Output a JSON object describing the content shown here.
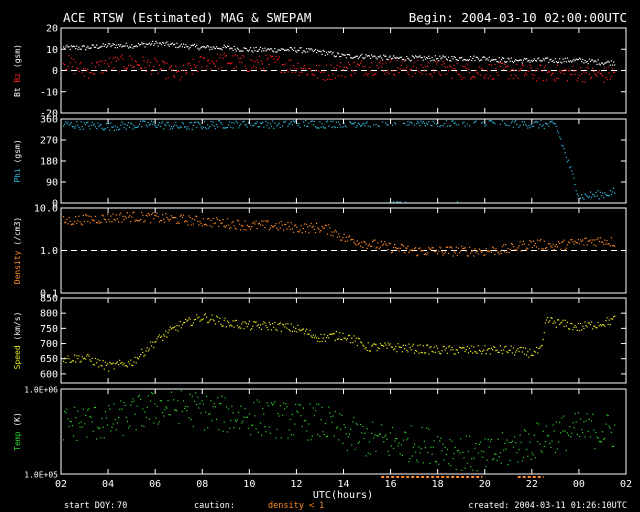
{
  "header": {
    "title": "ACE RTSW (Estimated) MAG & SWEPAM",
    "begin": "Begin: 2004-03-10 02:00:00UTC"
  },
  "footer": {
    "start_doy_label": "start DOY:",
    "start_doy": "70",
    "caution_label": "caution:",
    "density_note": "density < 1",
    "created": "created: 2004-03-11 01:26:10UTC"
  },
  "colors": {
    "bt": "#ffffff",
    "bz": "#ff2020",
    "phi": "#30b8e0",
    "density": "#ff8c28",
    "speed": "#e8e820",
    "temp": "#30d030",
    "axis": "#ffffff"
  },
  "chart_data": {
    "type": "scatter",
    "x_axis": {
      "label": "UTC(hours)",
      "range_hours": [
        2,
        26
      ],
      "tick_labels": [
        "02",
        "04",
        "06",
        "08",
        "10",
        "12",
        "14",
        "16",
        "18",
        "20",
        "22",
        "00",
        "02"
      ]
    },
    "caution_intervals_hours": [
      [
        15.6,
        19.9
      ],
      [
        21.4,
        22.5
      ]
    ],
    "panels": [
      {
        "id": "mag",
        "ylabel_parts": [
          "Bt",
          "Bz",
          "(gsm)"
        ],
        "ylim": [
          -20,
          20
        ],
        "scale": "linear",
        "tick_labels": [
          "20",
          "10",
          "0",
          "-10",
          "-20"
        ],
        "tick_values": [
          20,
          10,
          0,
          -10,
          -20
        ],
        "ref_line": 0,
        "series": [
          {
            "name": "Bt",
            "color_key": "bt",
            "x": [
              2,
              3,
              4,
              5,
              6,
              7,
              8,
              9,
              10,
              11,
              12,
              13,
              14,
              15,
              16,
              17,
              18,
              19,
              20,
              21,
              22,
              23,
              24,
              25,
              25.5
            ],
            "y": [
              11,
              11,
              12,
              12,
              13,
              12,
              11,
              11,
              10,
              10,
              10,
              9,
              7,
              7,
              6,
              6,
              6,
              6,
              6,
              5,
              5,
              5,
              5,
              4,
              4
            ],
            "spread": 1.2
          },
          {
            "name": "Bz",
            "color_key": "bz",
            "x": [
              2,
              3,
              4,
              5,
              6,
              7,
              8,
              9,
              10,
              11,
              12,
              13,
              14,
              15,
              16,
              17,
              18,
              19,
              20,
              21,
              22,
              23,
              24,
              25,
              25.5
            ],
            "y": [
              5,
              0,
              3,
              4,
              2,
              -2,
              4,
              5,
              3,
              4,
              2,
              -1,
              1,
              2,
              2,
              1,
              1,
              0,
              0,
              0,
              -1,
              -1,
              -1,
              -2,
              -1
            ],
            "spread": 4
          }
        ]
      },
      {
        "id": "phi",
        "ylabel_parts": [
          "Phi",
          "(gsm)"
        ],
        "ylim": [
          0,
          360
        ],
        "scale": "linear",
        "tick_labels": [
          "360",
          "270",
          "180",
          "90",
          "0"
        ],
        "tick_values": [
          360,
          270,
          180,
          90,
          0
        ],
        "series": [
          {
            "name": "Phi",
            "color_key": "phi",
            "x": [
              2,
              3,
              4,
              5,
              6,
              7,
              8,
              9,
              10,
              11,
              12,
              13,
              14,
              15,
              16,
              17,
              18,
              19,
              20,
              21,
              22,
              23,
              24,
              25,
              25.5
            ],
            "y": [
              340,
              335,
              330,
              335,
              340,
              330,
              335,
              340,
              345,
              340,
              345,
              340,
              345,
              345,
              350,
              350,
              345,
              350,
              350,
              345,
              340,
              335,
              30,
              40,
              50
            ],
            "spread": 18
          }
        ]
      },
      {
        "id": "density",
        "ylabel_parts": [
          "Density",
          "(/cm3)"
        ],
        "ylim": [
          0.1,
          10
        ],
        "scale": "log",
        "tick_labels": [
          "10.0",
          "1.0",
          "0.1"
        ],
        "tick_values": [
          10,
          1,
          0.1
        ],
        "ref_line": 1,
        "series": [
          {
            "name": "Density",
            "color_key": "density",
            "x": [
              2,
              3,
              4,
              5,
              6,
              7,
              8,
              9,
              10,
              11,
              12,
              13,
              13.5,
              14,
              15,
              16,
              17,
              18,
              19,
              20,
              21,
              22,
              23,
              24,
              25,
              25.5
            ],
            "y": [
              5,
              5.5,
              6,
              6.5,
              6,
              5.5,
              5,
              4.5,
              4,
              4,
              3.5,
              3.5,
              3,
              2,
              1.5,
              1.2,
              1,
              1,
              1,
              1,
              1.1,
              1.5,
              1.3,
              1.6,
              1.8,
              1.6
            ],
            "spread": 0.12
          }
        ]
      },
      {
        "id": "speed",
        "ylabel_parts": [
          "Speed",
          "(km/s)"
        ],
        "ylim": [
          570,
          850
        ],
        "scale": "linear",
        "tick_labels": [
          "850",
          "800",
          "750",
          "700",
          "650",
          "600",
          "550"
        ],
        "tick_values": [
          850,
          800,
          750,
          700,
          650,
          600,
          550
        ],
        "series": [
          {
            "name": "Speed",
            "color_key": "speed",
            "x": [
              2,
              3,
              4,
              5,
              6,
              7,
              8,
              9,
              10,
              11,
              12,
              13,
              14,
              15,
              16,
              17,
              18,
              19,
              20,
              21,
              22,
              22.4,
              22.6,
              23,
              24,
              25,
              25.5
            ],
            "y": [
              650,
              655,
              625,
              640,
              710,
              760,
              790,
              770,
              760,
              760,
              750,
              720,
              730,
              690,
              690,
              685,
              680,
              680,
              680,
              680,
              670,
              680,
              780,
              770,
              755,
              770,
              780
            ],
            "spread": 15
          }
        ]
      },
      {
        "id": "temp",
        "ylabel_parts": [
          "Temp",
          "(K)"
        ],
        "ylim": [
          100000,
          1000000
        ],
        "scale": "log",
        "tick_labels": [
          "1.0E+06",
          "1.0E+05"
        ],
        "tick_values": [
          1000000,
          100000
        ],
        "series": [
          {
            "name": "Temp",
            "color_key": "temp",
            "x": [
              2,
              3,
              4,
              5,
              6,
              7,
              8,
              9,
              10,
              11,
              12,
              13,
              14,
              15,
              16,
              17,
              18,
              19,
              20,
              21,
              22,
              23,
              24,
              25,
              25.5
            ],
            "y": [
              380000,
              420000,
              400000,
              500000,
              600000,
              650000,
              550000,
              500000,
              480000,
              450000,
              420000,
              420000,
              300000,
              260000,
              240000,
              230000,
              220000,
              180000,
              160000,
              200000,
              240000,
              300000,
              330000,
              330000,
              320000
            ],
            "spread": 0.22
          }
        ]
      }
    ]
  }
}
